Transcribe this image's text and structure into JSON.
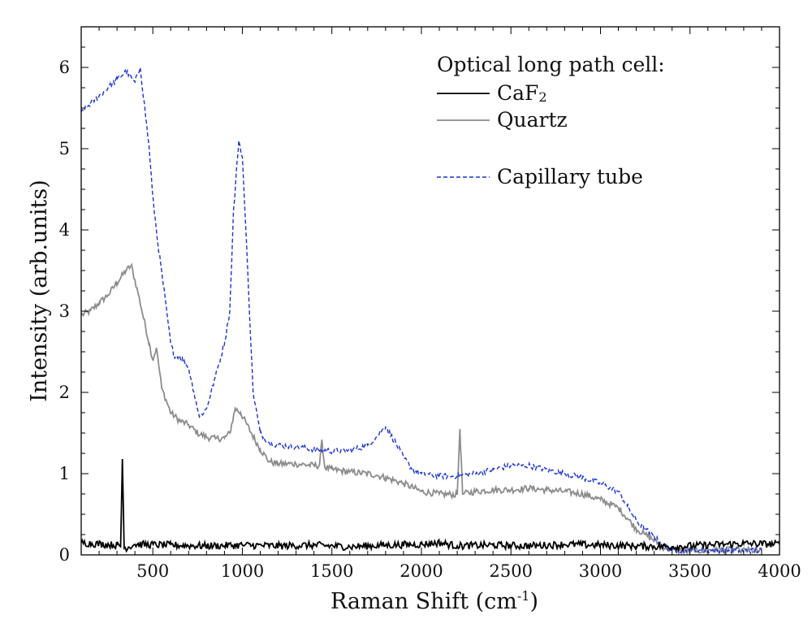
{
  "chart_data": {
    "type": "line",
    "title": "",
    "xlabel": "Raman Shift (cm",
    "xlabel_sup": "-1",
    "xlabel_tail": ")",
    "ylabel": "Intensity (arb.units)",
    "xlim": [
      100,
      4000
    ],
    "ylim": [
      0,
      6.5
    ],
    "x_ticks": [
      500,
      1000,
      1500,
      2000,
      2500,
      3000,
      3500,
      4000
    ],
    "x_tick_labels": [
      "500",
      "1000",
      "1500",
      "2000",
      "2500",
      "3000",
      "3500",
      "4000"
    ],
    "y_ticks": [
      0,
      1,
      2,
      3,
      4,
      5,
      6
    ],
    "y_tick_labels": [
      "0",
      "1",
      "2",
      "3",
      "4",
      "5",
      "6"
    ],
    "legend": {
      "title": "Optical long path cell:",
      "placement": "top-right"
    },
    "series": [
      {
        "name": "CaF",
        "name_sub": "2",
        "color": "#000000",
        "style": "solid",
        "points": [
          [
            100,
            0.15
          ],
          [
            300,
            0.12
          ],
          [
            320,
            0.1
          ],
          [
            330,
            1.18
          ],
          [
            340,
            0.08
          ],
          [
            400,
            0.13
          ],
          [
            600,
            0.12
          ],
          [
            800,
            0.11
          ],
          [
            1000,
            0.12
          ],
          [
            1200,
            0.11
          ],
          [
            1400,
            0.12
          ],
          [
            1600,
            0.1
          ],
          [
            1800,
            0.12
          ],
          [
            2000,
            0.13
          ],
          [
            2100,
            0.15
          ],
          [
            2200,
            0.11
          ],
          [
            2400,
            0.12
          ],
          [
            2600,
            0.11
          ],
          [
            2800,
            0.13
          ],
          [
            3000,
            0.12
          ],
          [
            3200,
            0.11
          ],
          [
            3400,
            0.1
          ],
          [
            3600,
            0.12
          ],
          [
            3800,
            0.14
          ],
          [
            4000,
            0.13
          ]
        ],
        "noise": 0.045
      },
      {
        "name": "Quartz",
        "color": "#8c8c8c",
        "style": "solid",
        "points": [
          [
            100,
            2.95
          ],
          [
            150,
            3.0
          ],
          [
            200,
            3.1
          ],
          [
            250,
            3.2
          ],
          [
            300,
            3.35
          ],
          [
            350,
            3.5
          ],
          [
            380,
            3.56
          ],
          [
            420,
            3.2
          ],
          [
            450,
            2.9
          ],
          [
            480,
            2.6
          ],
          [
            500,
            2.4
          ],
          [
            520,
            2.55
          ],
          [
            550,
            2.05
          ],
          [
            600,
            1.75
          ],
          [
            650,
            1.65
          ],
          [
            700,
            1.6
          ],
          [
            750,
            1.5
          ],
          [
            800,
            1.45
          ],
          [
            850,
            1.43
          ],
          [
            900,
            1.44
          ],
          [
            930,
            1.5
          ],
          [
            960,
            1.8
          ],
          [
            990,
            1.75
          ],
          [
            1050,
            1.5
          ],
          [
            1100,
            1.3
          ],
          [
            1150,
            1.15
          ],
          [
            1200,
            1.12
          ],
          [
            1300,
            1.12
          ],
          [
            1400,
            1.1
          ],
          [
            1430,
            1.1
          ],
          [
            1445,
            1.4
          ],
          [
            1460,
            1.08
          ],
          [
            1500,
            1.05
          ],
          [
            1600,
            1.02
          ],
          [
            1700,
            1.0
          ],
          [
            1750,
            0.98
          ],
          [
            1800,
            0.95
          ],
          [
            1900,
            0.88
          ],
          [
            2000,
            0.78
          ],
          [
            2100,
            0.75
          ],
          [
            2200,
            0.74
          ],
          [
            2215,
            1.55
          ],
          [
            2230,
            0.75
          ],
          [
            2300,
            0.78
          ],
          [
            2400,
            0.8
          ],
          [
            2500,
            0.8
          ],
          [
            2600,
            0.82
          ],
          [
            2700,
            0.8
          ],
          [
            2800,
            0.78
          ],
          [
            2900,
            0.75
          ],
          [
            3000,
            0.68
          ],
          [
            3100,
            0.58
          ],
          [
            3150,
            0.45
          ],
          [
            3200,
            0.32
          ],
          [
            3250,
            0.25
          ],
          [
            3300,
            0.18
          ],
          [
            3350,
            0.1
          ],
          [
            3400,
            0.06
          ],
          [
            3500,
            0.05
          ],
          [
            3700,
            0.06
          ],
          [
            3900,
            0.05
          ]
        ],
        "noise": 0.04
      },
      {
        "name": "Capillary tube",
        "color": "#1a33d6",
        "style": "dashed",
        "points": [
          [
            100,
            5.45
          ],
          [
            150,
            5.55
          ],
          [
            200,
            5.65
          ],
          [
            250,
            5.75
          ],
          [
            300,
            5.85
          ],
          [
            350,
            5.95
          ],
          [
            400,
            5.82
          ],
          [
            430,
            6.0
          ],
          [
            450,
            5.6
          ],
          [
            480,
            5.0
          ],
          [
            500,
            4.4
          ],
          [
            530,
            3.8
          ],
          [
            560,
            3.3
          ],
          [
            600,
            2.6
          ],
          [
            620,
            2.45
          ],
          [
            650,
            2.45
          ],
          [
            700,
            2.3
          ],
          [
            730,
            2.0
          ],
          [
            760,
            1.7
          ],
          [
            800,
            1.8
          ],
          [
            850,
            2.2
          ],
          [
            900,
            2.6
          ],
          [
            930,
            3.0
          ],
          [
            950,
            4.2
          ],
          [
            980,
            5.1
          ],
          [
            1000,
            4.9
          ],
          [
            1030,
            3.5
          ],
          [
            1060,
            2.0
          ],
          [
            1100,
            1.5
          ],
          [
            1150,
            1.38
          ],
          [
            1200,
            1.35
          ],
          [
            1300,
            1.33
          ],
          [
            1400,
            1.3
          ],
          [
            1500,
            1.28
          ],
          [
            1600,
            1.28
          ],
          [
            1700,
            1.35
          ],
          [
            1750,
            1.45
          ],
          [
            1800,
            1.58
          ],
          [
            1850,
            1.4
          ],
          [
            1900,
            1.2
          ],
          [
            1950,
            1.05
          ],
          [
            2000,
            1.0
          ],
          [
            2100,
            0.97
          ],
          [
            2200,
            0.97
          ],
          [
            2300,
            1.0
          ],
          [
            2400,
            1.05
          ],
          [
            2500,
            1.1
          ],
          [
            2600,
            1.1
          ],
          [
            2700,
            1.05
          ],
          [
            2800,
            1.0
          ],
          [
            2900,
            0.95
          ],
          [
            3000,
            0.88
          ],
          [
            3100,
            0.78
          ],
          [
            3150,
            0.6
          ],
          [
            3200,
            0.42
          ],
          [
            3250,
            0.32
          ],
          [
            3300,
            0.22
          ],
          [
            3350,
            0.12
          ],
          [
            3400,
            0.06
          ],
          [
            3500,
            0.05
          ],
          [
            3700,
            0.06
          ],
          [
            3900,
            0.05
          ]
        ],
        "noise": 0.035
      }
    ]
  }
}
